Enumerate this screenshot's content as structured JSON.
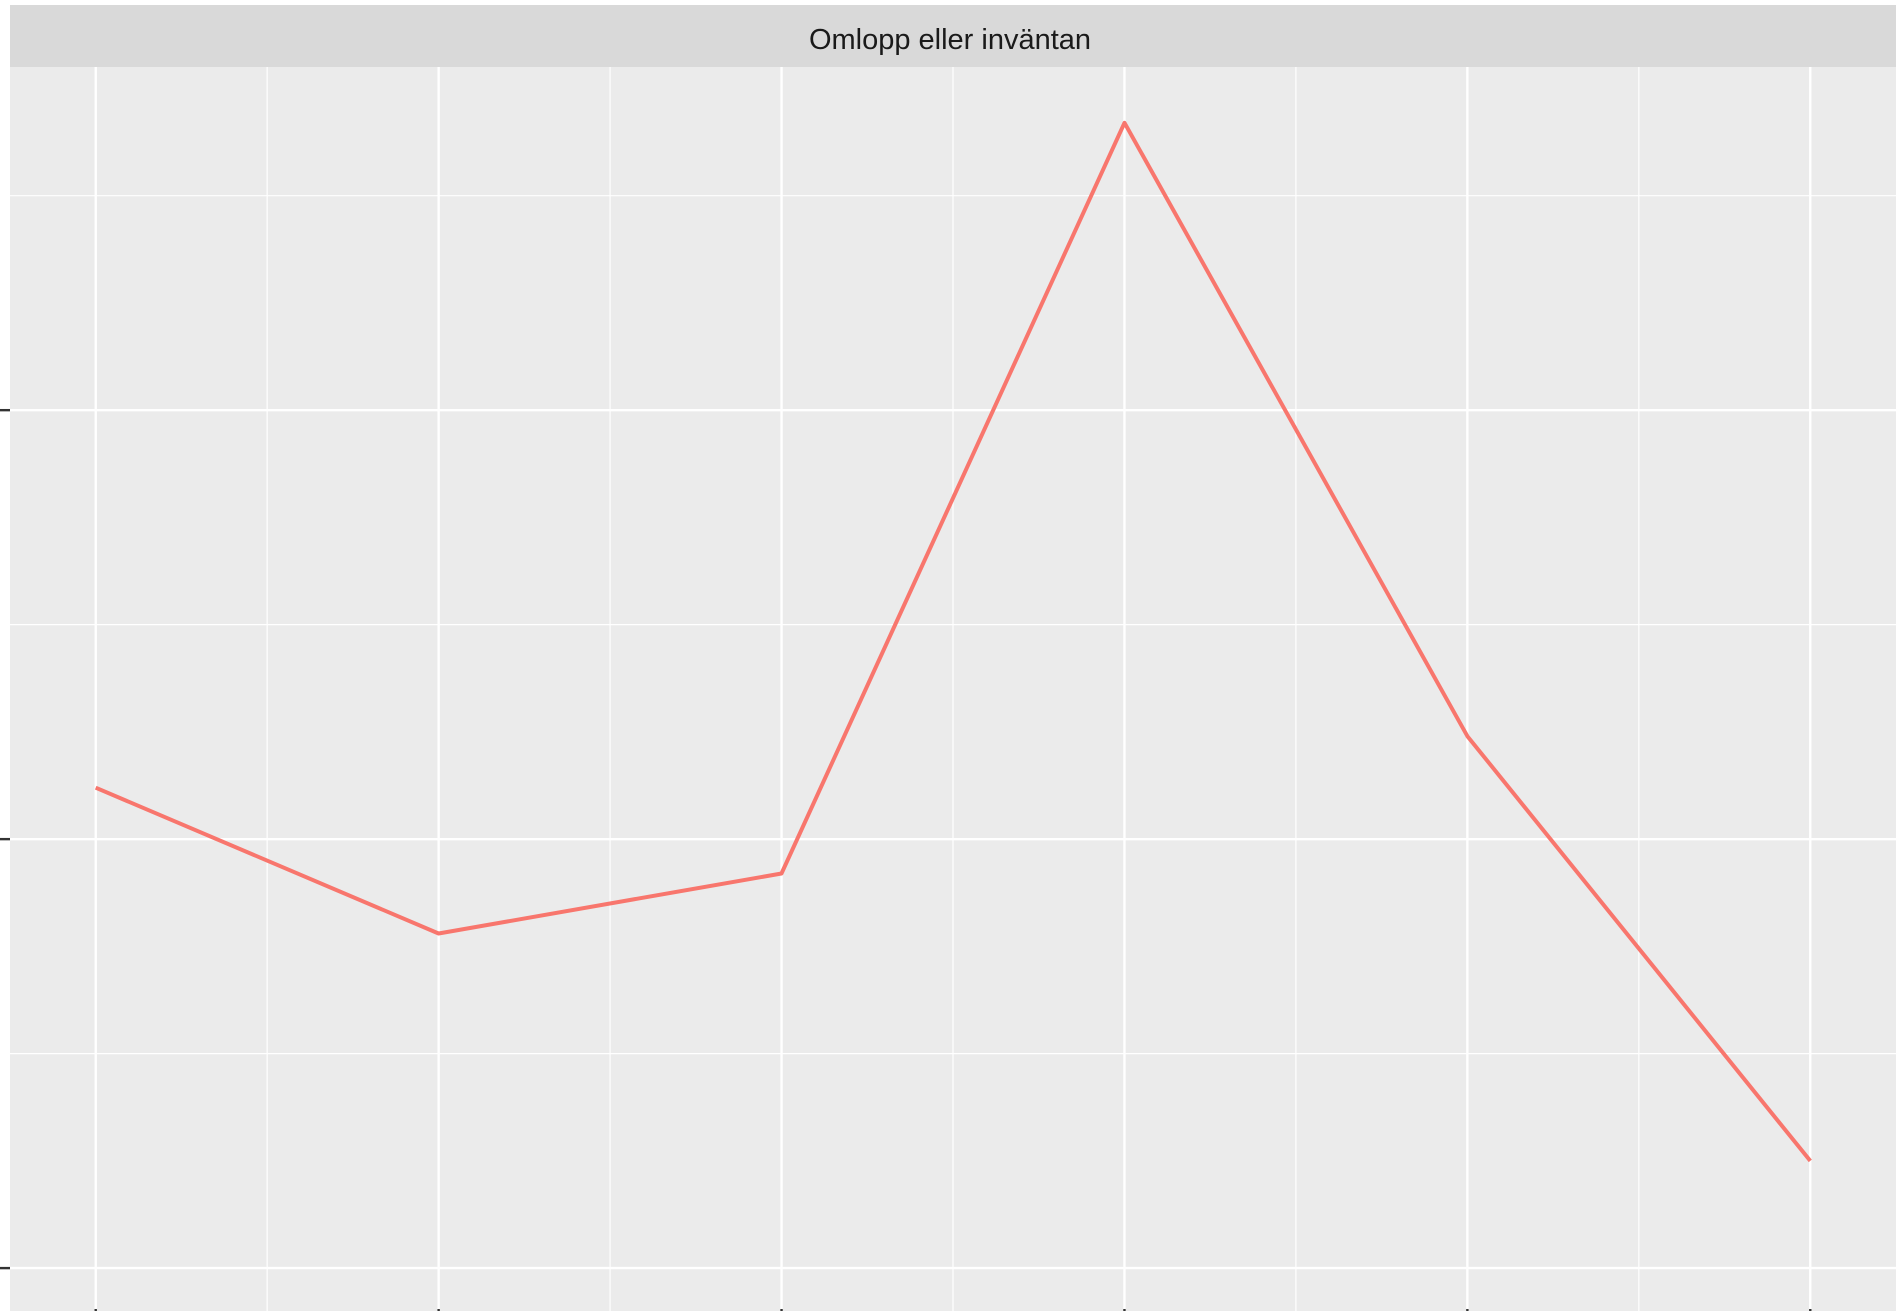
{
  "chart_data": {
    "type": "line",
    "facet_label": "Omlopp eller inväntan",
    "x": [
      1,
      2,
      3,
      4,
      5,
      6
    ],
    "xlim": [
      0.75,
      6.25
    ],
    "ylim": [
      -0.1,
      2.8
    ],
    "series": [
      {
        "values": [
          1.12,
          0.78,
          0.92,
          2.67,
          1.24,
          0.25
        ],
        "color": "#F8766D"
      }
    ],
    "grid": true,
    "legend": "none",
    "colors": {
      "panel_background": "#EBEBEB",
      "strip_background": "#D9D9D9",
      "grid_line": "#FFFFFF",
      "tick_mark": "#333333",
      "strip_text": "#1A1A1A"
    }
  }
}
